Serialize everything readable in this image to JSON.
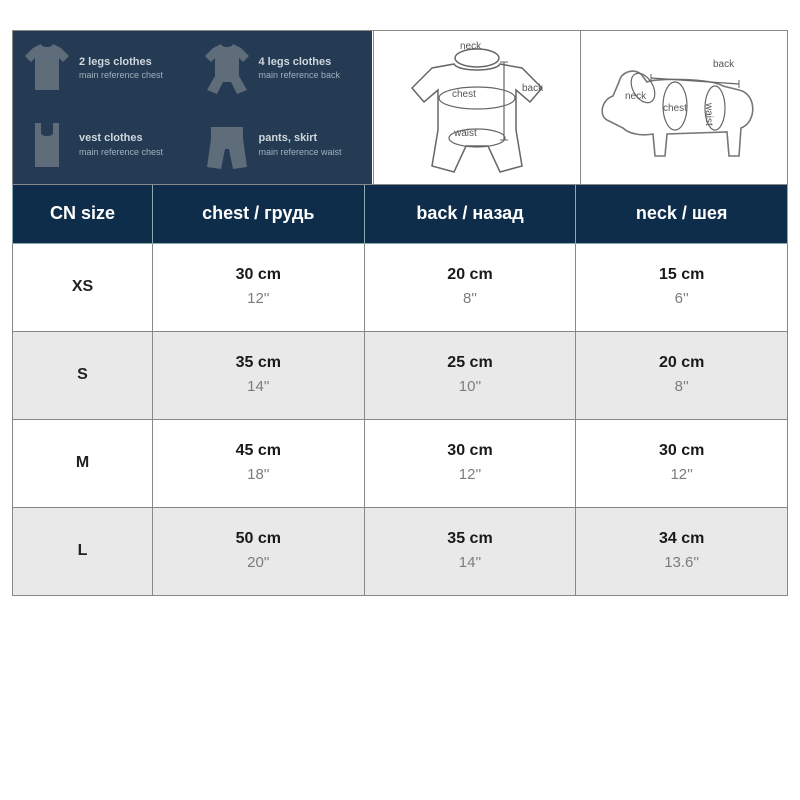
{
  "diagram": {
    "clothing": [
      {
        "title": "2 legs clothes",
        "sub": "main reference chest"
      },
      {
        "title": "4 legs clothes",
        "sub": "main reference back"
      },
      {
        "title": "vest clothes",
        "sub": "main reference chest"
      },
      {
        "title": "pants, skirt",
        "sub": "main reference waist"
      }
    ],
    "mid_labels": {
      "neck": "neck",
      "chest": "chest",
      "back": "back",
      "waist": "waist"
    },
    "right_labels": {
      "neck": "neck",
      "chest": "chest",
      "back": "back",
      "waist": "waist"
    }
  },
  "table": {
    "header_bg": "#0e2d4a",
    "header_fg": "#ffffff",
    "alt_row_bg": "#e9e9e9",
    "border_color": "#888888",
    "columns": [
      "CN size",
      "chest  / грудь",
      "back / назад",
      "neck / шея"
    ],
    "rows": [
      {
        "size": "XS",
        "alt": false,
        "chest_cm": "30 cm",
        "chest_in": "12''",
        "back_cm": "20 cm",
        "back_in": "8''",
        "neck_cm": "15 cm",
        "neck_in": "6''"
      },
      {
        "size": "S",
        "alt": true,
        "chest_cm": "35 cm",
        "chest_in": "14''",
        "back_cm": "25 cm",
        "back_in": "10''",
        "neck_cm": "20 cm",
        "neck_in": "8''"
      },
      {
        "size": "M",
        "alt": false,
        "chest_cm": "45 cm",
        "chest_in": "18''",
        "back_cm": "30 cm",
        "back_in": "12''",
        "neck_cm": "30 cm",
        "neck_in": "12''"
      },
      {
        "size": "L",
        "alt": true,
        "chest_cm": "50 cm",
        "chest_in": "20''",
        "back_cm": "35 cm",
        "back_in": "14''",
        "neck_cm": "34 cm",
        "neck_in": "13.6''"
      }
    ]
  }
}
